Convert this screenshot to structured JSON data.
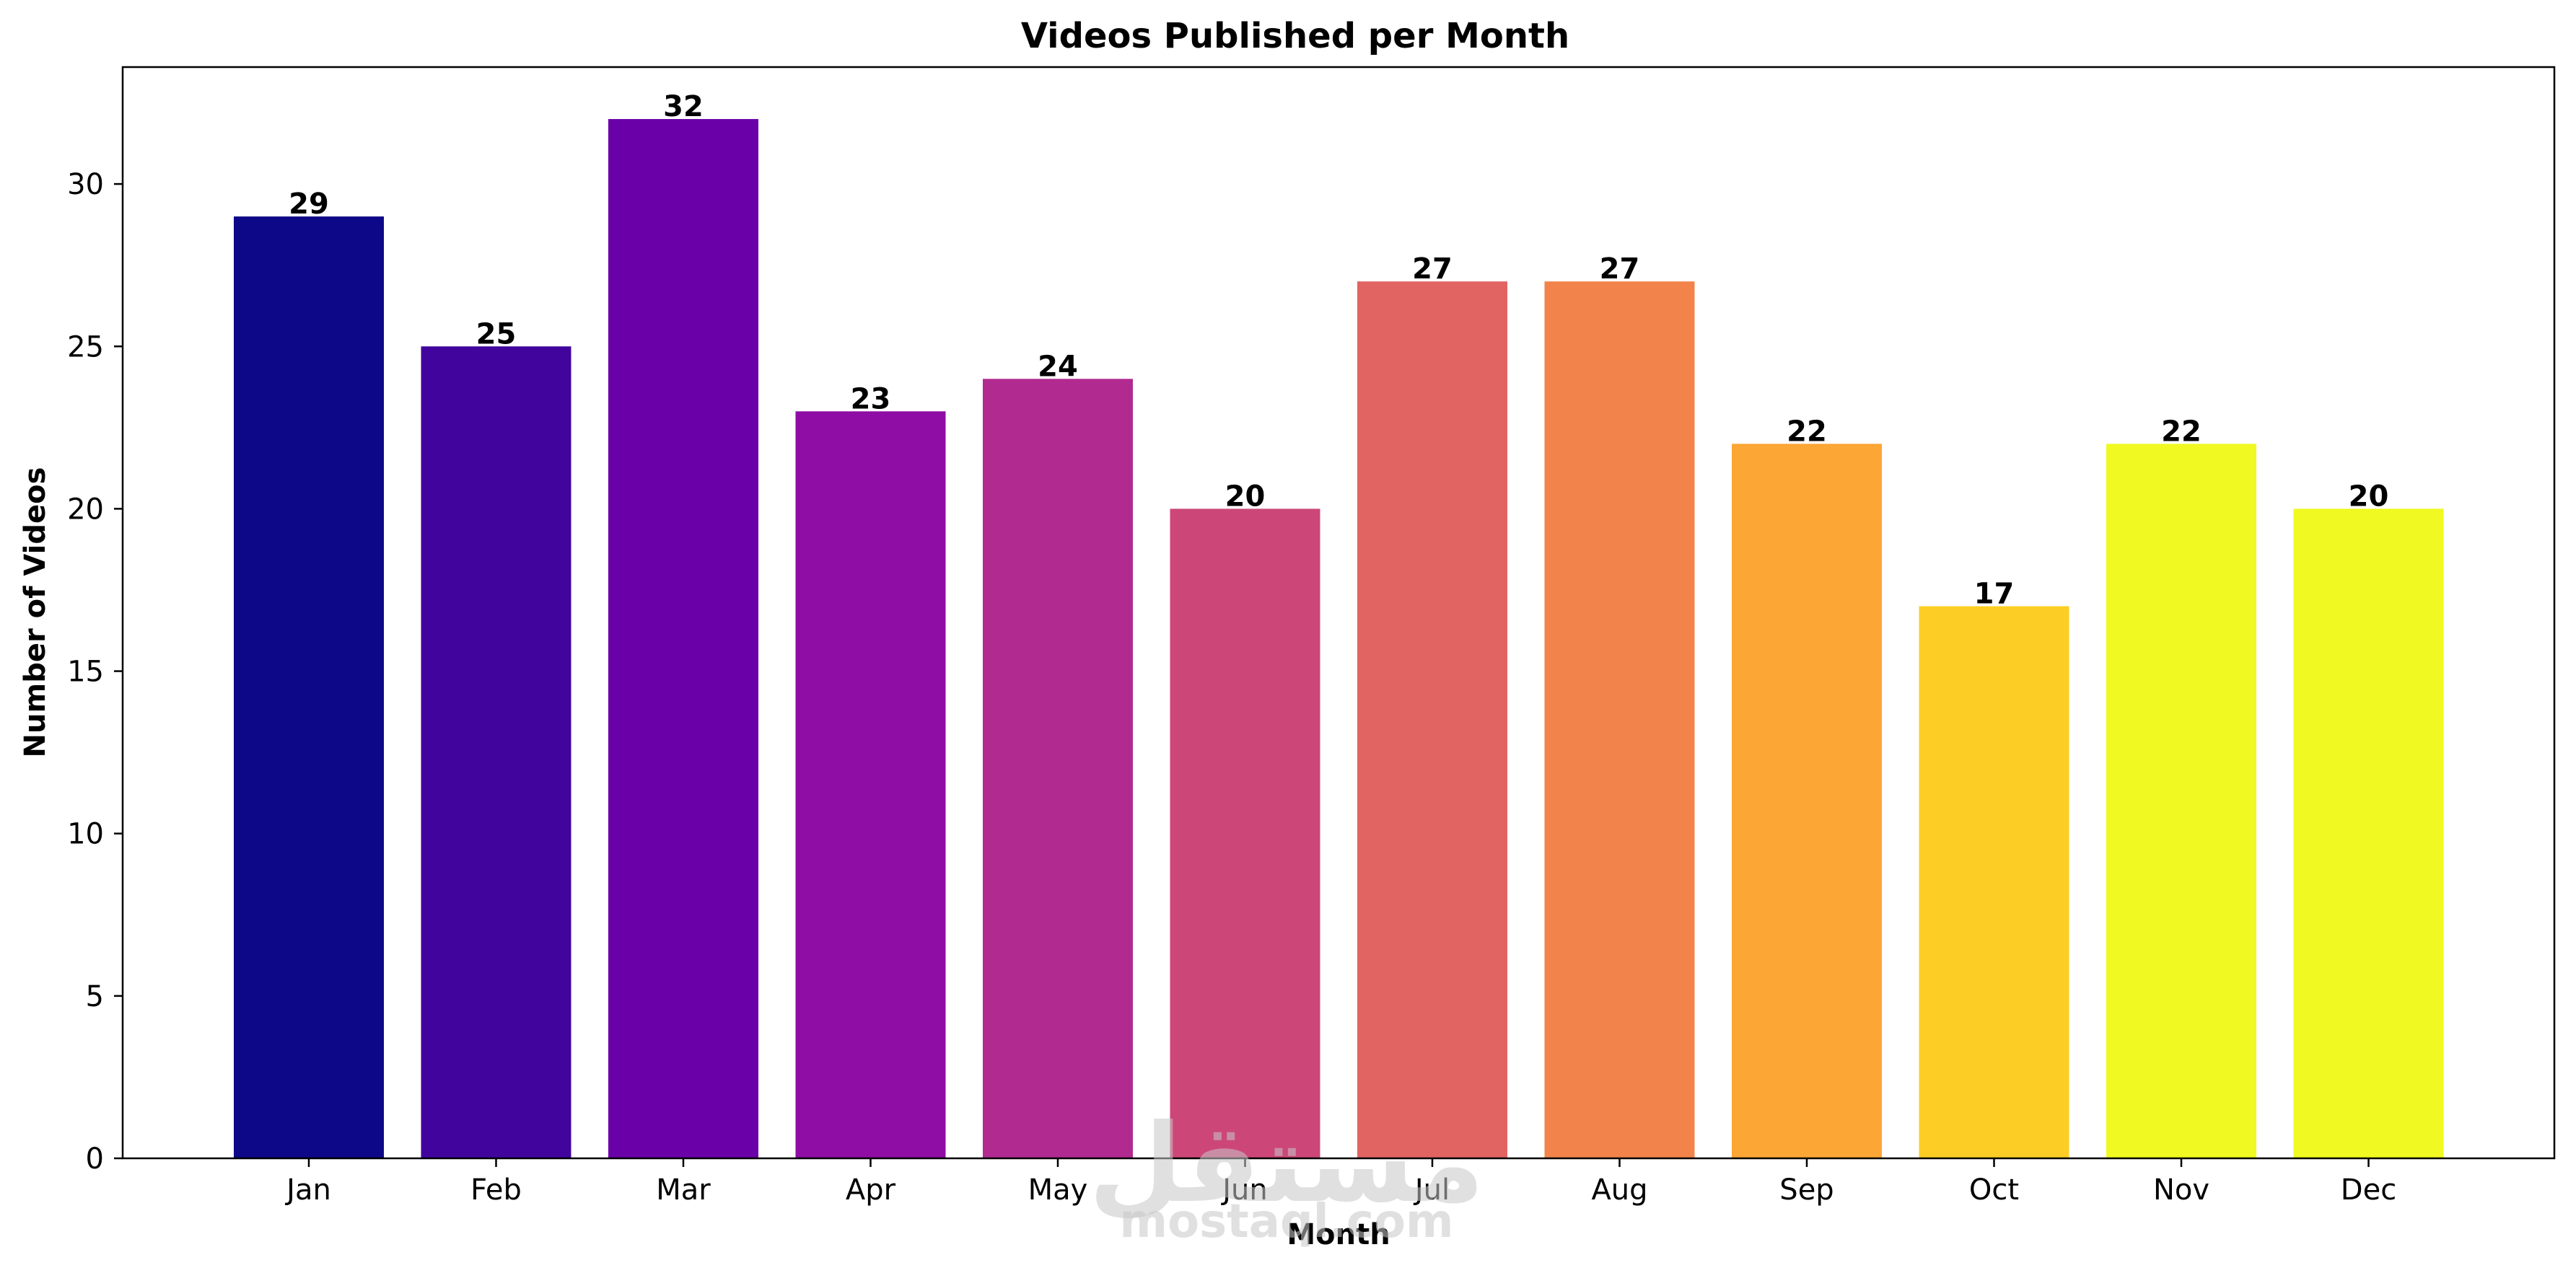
{
  "chart_data": {
    "type": "bar",
    "title": "Videos Published per Month",
    "xlabel": "Month",
    "ylabel": "Number of Videos",
    "categories": [
      "Jan",
      "Feb",
      "Mar",
      "Apr",
      "May",
      "Jun",
      "Jul",
      "Aug",
      "Sep",
      "Oct",
      "Nov",
      "Dec"
    ],
    "values": [
      29,
      25,
      32,
      23,
      24,
      20,
      27,
      27,
      22,
      17,
      22,
      20
    ],
    "colors": [
      "#0d0887",
      "#41049d",
      "#6a00a8",
      "#8f0da4",
      "#b12a90",
      "#cc4778",
      "#e16462",
      "#f2844b",
      "#fca636",
      "#fcce25",
      "#f0f921",
      "#f0f921"
    ],
    "ylim": [
      0,
      33.6
    ],
    "yticks": [
      0,
      5,
      10,
      15,
      20,
      25,
      30
    ],
    "grid": false,
    "data_labels": true
  },
  "watermark": {
    "arabic": "مستقل",
    "latin": "mostaql.com"
  }
}
